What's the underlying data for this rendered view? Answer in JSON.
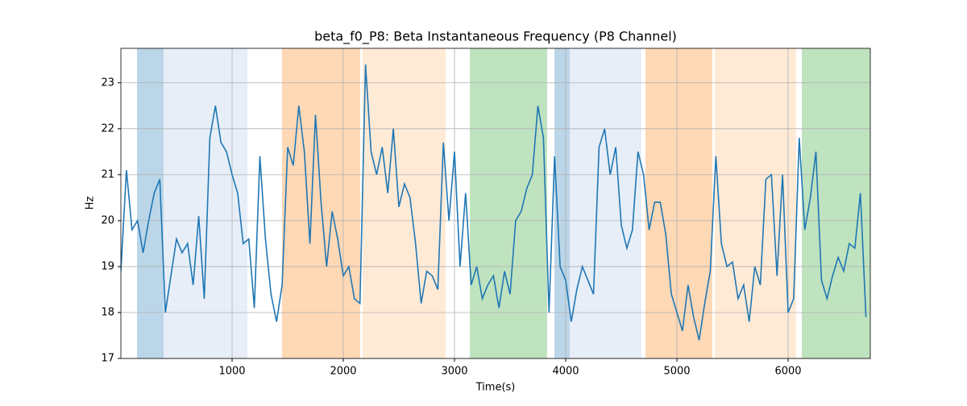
{
  "chart_data": {
    "type": "line",
    "title": "beta_f0_P8: Beta Instantaneous Frequency (P8 Channel)",
    "xlabel": "Time(s)",
    "ylabel": "Hz",
    "x": [
      0,
      50,
      100,
      150,
      200,
      250,
      300,
      350,
      400,
      450,
      500,
      550,
      600,
      650,
      700,
      750,
      800,
      850,
      900,
      950,
      1000,
      1050,
      1100,
      1150,
      1200,
      1250,
      1300,
      1350,
      1400,
      1450,
      1500,
      1550,
      1600,
      1650,
      1700,
      1750,
      1800,
      1850,
      1900,
      1950,
      2000,
      2050,
      2100,
      2150,
      2200,
      2250,
      2300,
      2350,
      2400,
      2450,
      2500,
      2550,
      2600,
      2650,
      2700,
      2750,
      2800,
      2850,
      2900,
      2950,
      3000,
      3050,
      3100,
      3150,
      3200,
      3250,
      3300,
      3350,
      3400,
      3450,
      3500,
      3550,
      3600,
      3650,
      3700,
      3750,
      3800,
      3850,
      3900,
      3950,
      4000,
      4050,
      4100,
      4150,
      4200,
      4250,
      4300,
      4350,
      4400,
      4450,
      4500,
      4550,
      4600,
      4650,
      4700,
      4750,
      4800,
      4850,
      4900,
      4950,
      5000,
      5050,
      5100,
      5150,
      5200,
      5250,
      5300,
      5350,
      5400,
      5450,
      5500,
      5550,
      5600,
      5650,
      5700,
      5750,
      5800,
      5850,
      5900,
      5950,
      6000,
      6050,
      6100,
      6150,
      6200,
      6250,
      6300,
      6350,
      6400,
      6450,
      6500,
      6550,
      6600,
      6650,
      6700
    ],
    "series": [
      {
        "color": "#1f77b4",
        "values": [
          18.9,
          21.1,
          19.8,
          20.0,
          19.3,
          20.0,
          20.6,
          20.9,
          18.0,
          18.8,
          19.6,
          19.3,
          19.5,
          18.6,
          20.1,
          18.3,
          21.8,
          22.5,
          21.7,
          21.5,
          21.0,
          20.6,
          19.5,
          19.6,
          18.1,
          21.4,
          19.6,
          18.4,
          17.8,
          18.6,
          21.6,
          21.2,
          22.5,
          21.5,
          19.5,
          22.3,
          20.4,
          19.0,
          20.2,
          19.6,
          18.8,
          19.0,
          18.3,
          18.2,
          23.4,
          21.5,
          21.0,
          21.6,
          20.6,
          22.0,
          20.3,
          20.8,
          20.5,
          19.5,
          18.2,
          18.9,
          18.8,
          18.5,
          21.7,
          20.0,
          21.5,
          19.0,
          20.6,
          18.6,
          19.0,
          18.3,
          18.6,
          18.8,
          18.1,
          18.9,
          18.4,
          20.0,
          20.2,
          20.7,
          21.0,
          22.5,
          21.8,
          18.0,
          21.4,
          19.0,
          18.7,
          17.8,
          18.5,
          19.0,
          18.7,
          18.4,
          21.6,
          22.0,
          21.0,
          21.6,
          19.9,
          19.4,
          19.8,
          21.5,
          21.0,
          19.8,
          20.4,
          20.4,
          19.7,
          18.4,
          18.0,
          17.6,
          18.6,
          17.9,
          17.4,
          18.2,
          18.9,
          21.4,
          19.5,
          19.0,
          19.1,
          18.3,
          18.6,
          17.8,
          19.0,
          18.6,
          20.9,
          21.0,
          18.8,
          21.0,
          18.0,
          18.3,
          21.8,
          19.8,
          20.5,
          21.5,
          18.7,
          18.3,
          18.8,
          19.2,
          18.9,
          19.5,
          19.4,
          20.6,
          17.9
        ]
      }
    ],
    "spans": [
      {
        "start": 145,
        "end": 384,
        "color": "#1f77b4",
        "alpha": 0.3
      },
      {
        "start": 384,
        "end": 1138,
        "color": "#aec7e8",
        "alpha": 0.3
      },
      {
        "start": 1449,
        "end": 2152,
        "color": "#ff7f0e",
        "alpha": 0.3
      },
      {
        "start": 2174,
        "end": 2920,
        "color": "#ffbb78",
        "alpha": 0.3
      },
      {
        "start": 3138,
        "end": 3833,
        "color": "#2ca02c",
        "alpha": 0.3
      },
      {
        "start": 3899,
        "end": 4036,
        "color": "#1f77b4",
        "alpha": 0.3
      },
      {
        "start": 4036,
        "end": 4681,
        "color": "#aec7e8",
        "alpha": 0.3
      },
      {
        "start": 4717,
        "end": 5319,
        "color": "#ff7f0e",
        "alpha": 0.3
      },
      {
        "start": 5341,
        "end": 6072,
        "color": "#ffbb78",
        "alpha": 0.3
      },
      {
        "start": 6123,
        "end": 6739,
        "color": "#2ca02c",
        "alpha": 0.3
      }
    ],
    "xlim": [
      0,
      6739
    ],
    "ylim": [
      17,
      23.75
    ],
    "xticks": [
      1000,
      2000,
      3000,
      4000,
      5000,
      6000
    ],
    "yticks": [
      17,
      18,
      19,
      20,
      21,
      22,
      23
    ],
    "grid": true
  }
}
